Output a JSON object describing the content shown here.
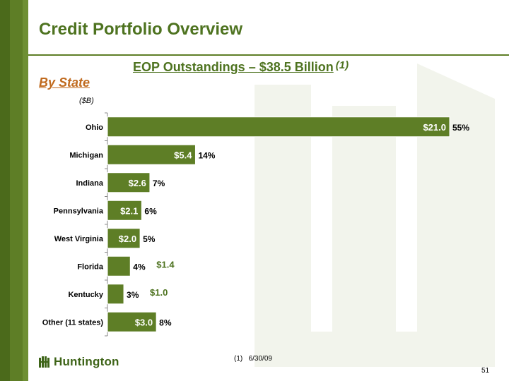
{
  "header": {
    "title": "Credit Portfolio Overview",
    "subtitle": "EOP Outstandings – $38.5 Billion",
    "subtitle_note": "(1)",
    "section": "By State",
    "unit": "($B)"
  },
  "footnote": {
    "marker": "(1)",
    "text": "6/30/09"
  },
  "logo": {
    "text": "Huntington"
  },
  "page_number": "51",
  "colors": {
    "bar": "#5e7e26",
    "accent_text": "#4e7320",
    "section": "#c06a1e"
  },
  "chart_data": {
    "type": "bar",
    "orientation": "horizontal",
    "categories": [
      "Ohio",
      "Michigan",
      "Indiana",
      "Pennsylvania",
      "West Virginia",
      "Florida",
      "Kentucky",
      "Other (11 states)"
    ],
    "values": [
      21.0,
      5.4,
      2.6,
      2.1,
      2.0,
      1.4,
      1.0,
      3.0
    ],
    "value_labels": [
      "$21.0",
      "$5.4",
      "$2.6",
      "$2.1",
      "$2.0",
      "$1.4",
      "$1.0",
      "$3.0"
    ],
    "percent_labels": [
      "55%",
      "14%",
      "7%",
      "6%",
      "5%",
      "4%",
      "3%",
      "8%"
    ],
    "xlim": [
      0,
      22
    ],
    "grid": false,
    "title": "",
    "xlabel": "",
    "ylabel": ""
  }
}
